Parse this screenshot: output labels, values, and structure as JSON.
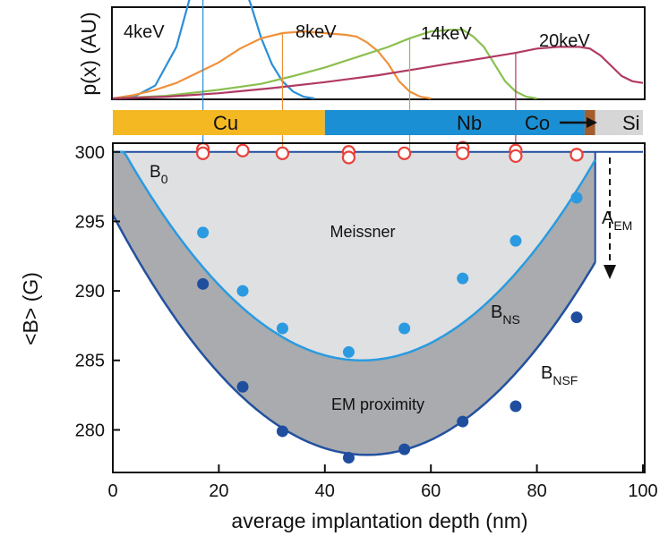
{
  "chart_data": [
    {
      "type": "line",
      "ylabel": "p(x) (AU)",
      "series": [
        {
          "name": "4keV",
          "color": "#2b8fd6",
          "points": [
            [
              0,
              0
            ],
            [
              4,
              2
            ],
            [
              8,
              15
            ],
            [
              12,
              60
            ],
            [
              16,
              150
            ],
            [
              20,
              175
            ],
            [
              23,
              160
            ],
            [
              26,
              110
            ],
            [
              28,
              70
            ],
            [
              30,
              40
            ],
            [
              32,
              20
            ],
            [
              34,
              8
            ],
            [
              36,
              2
            ],
            [
              38,
              0
            ]
          ],
          "stopping_peak": 17
        },
        {
          "name": "8keV",
          "color": "#f0913a",
          "points": [
            [
              0,
              0
            ],
            [
              4,
              4
            ],
            [
              8,
              10
            ],
            [
              12,
              18
            ],
            [
              16,
              30
            ],
            [
              20,
              42
            ],
            [
              24,
              58
            ],
            [
              28,
              70
            ],
            [
              32,
              76
            ],
            [
              36,
              78
            ],
            [
              40,
              76
            ],
            [
              44,
              74
            ],
            [
              46,
              72
            ],
            [
              48,
              65
            ],
            [
              50,
              55
            ],
            [
              52,
              40
            ],
            [
              54,
              20
            ],
            [
              56,
              8
            ],
            [
              58,
              2
            ],
            [
              60,
              0
            ]
          ],
          "stopping_peak": 32
        },
        {
          "name": "14keV",
          "color": "#8bbf4f",
          "points": [
            [
              0,
              0
            ],
            [
              10,
              3
            ],
            [
              20,
              10
            ],
            [
              28,
              17
            ],
            [
              34,
              26
            ],
            [
              40,
              36
            ],
            [
              46,
              48
            ],
            [
              52,
              60
            ],
            [
              56,
              70
            ],
            [
              60,
              78
            ],
            [
              64,
              80
            ],
            [
              66,
              80
            ],
            [
              68,
              72
            ],
            [
              70,
              60
            ],
            [
              72,
              40
            ],
            [
              74,
              20
            ],
            [
              76,
              8
            ],
            [
              78,
              2
            ],
            [
              80,
              0
            ]
          ],
          "stopping_peak": 56
        },
        {
          "name": "20keV",
          "color": "#b03a63",
          "points": [
            [
              0,
              0
            ],
            [
              10,
              2
            ],
            [
              20,
              6
            ],
            [
              30,
              12
            ],
            [
              40,
              19
            ],
            [
              50,
              27
            ],
            [
              58,
              35
            ],
            [
              64,
              41
            ],
            [
              70,
              47
            ],
            [
              76,
              53
            ],
            [
              80,
              58
            ],
            [
              84,
              60
            ],
            [
              88,
              60
            ],
            [
              90,
              58
            ],
            [
              92,
              50
            ],
            [
              94,
              38
            ],
            [
              96,
              26
            ],
            [
              98,
              20
            ],
            [
              100,
              18
            ]
          ],
          "stopping_peak": 76
        }
      ]
    },
    {
      "type": "layers",
      "layers": [
        {
          "label": "Cu",
          "from": 0,
          "to": 40,
          "color": "#f4b822"
        },
        {
          "label": "Nb",
          "from": 40,
          "to": 89,
          "color": "#1b8fd3"
        },
        {
          "label": "Co",
          "from": 89,
          "to": 91,
          "color": "#a45d2c"
        },
        {
          "label": "Si",
          "from": 91,
          "to": 100,
          "color": "#d6d6d6"
        }
      ],
      "co_label": "Co",
      "co_arrow": "⟶"
    },
    {
      "type": "scatter",
      "xlabel": "average implantation depth (nm)",
      "ylabel": "<B> (G)",
      "xlim": [
        0,
        100
      ],
      "ylim": [
        277,
        300.5
      ],
      "xticks": [
        0,
        20,
        40,
        60,
        80,
        100
      ],
      "yticks": [
        280,
        285,
        290,
        295,
        300
      ],
      "series": [
        {
          "style": "open-red",
          "color": "#e8413a",
          "x": [
            17,
            17,
            24.5,
            32,
            44.5,
            44.5,
            55,
            66,
            66,
            76,
            76,
            87.5,
            87.5
          ],
          "y": [
            300.2,
            299.9,
            300.1,
            299.9,
            300.0,
            299.6,
            299.9,
            300.3,
            299.9,
            300.1,
            299.7,
            299.8,
            299.8
          ]
        },
        {
          "style": "filled-light",
          "color": "#2b9ae0",
          "x": [
            17,
            24.5,
            32,
            44.5,
            55,
            66,
            76,
            87.5
          ],
          "y": [
            294.2,
            290.0,
            287.3,
            285.6,
            287.3,
            290.9,
            293.6,
            296.7
          ]
        },
        {
          "style": "filled-dark",
          "color": "#1f4e9e",
          "x": [
            17,
            24.5,
            32,
            44.5,
            55,
            66,
            76,
            87.5
          ],
          "y": [
            290.5,
            283.1,
            279.9,
            278.0,
            278.6,
            280.6,
            281.7,
            288.1
          ]
        }
      ],
      "curves": [
        {
          "name": "B_NS",
          "color": "#2a9be0",
          "vertex_x": 47,
          "vertex_y": 285,
          "a": 0.00745
        },
        {
          "name": "B_NSF",
          "color": "#23519f",
          "vertex_x": 48,
          "vertex_y": 278.2,
          "a": 0.0075
        }
      ],
      "b0": 300,
      "annotations": {
        "b0": {
          "main": "B",
          "sub": "0"
        },
        "bns": {
          "main": "B",
          "sub": "NS"
        },
        "bnsf": {
          "main": "B",
          "sub": "NSF"
        },
        "aem": {
          "main": "A",
          "sub": "EM"
        },
        "meissner": "Meissner",
        "em_proximity": "EM proximity"
      }
    }
  ]
}
